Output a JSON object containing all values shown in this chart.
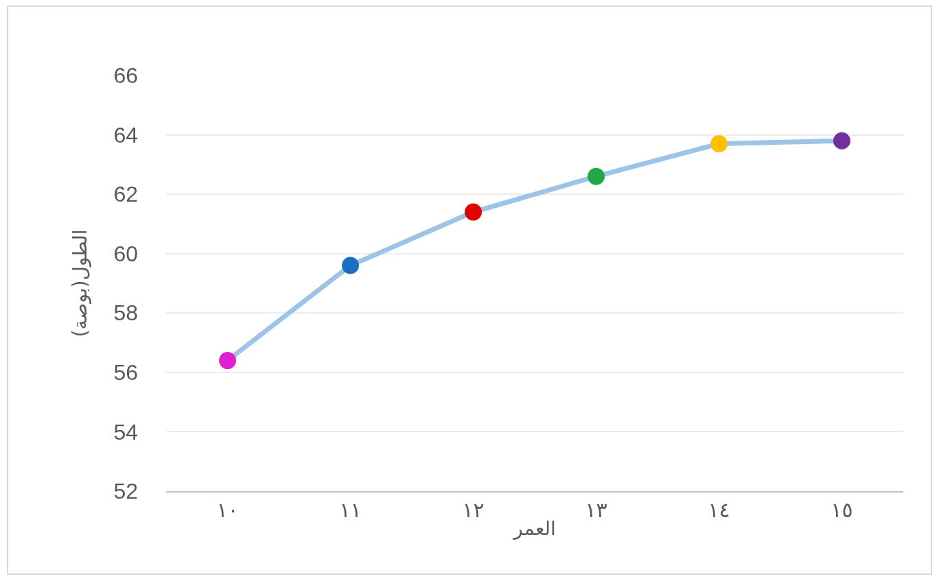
{
  "chart_data": {
    "type": "line",
    "xlabel": "العمر",
    "ylabel": "الطول(بوصة)",
    "categories": [
      "١٠",
      "١١",
      "١٢",
      "١٣",
      "١٤",
      "١٥"
    ],
    "series": [
      {
        "color": "#9dc3e6",
        "colors": [
          "#e020d0",
          "#1a6fc4",
          "#e00000",
          "#20a848",
          "#ffc000",
          "#7030a0"
        ],
        "values": [
          56.4,
          59.6,
          61.4,
          62.6,
          63.7,
          63.8
        ]
      }
    ],
    "ylim": [
      52,
      66
    ],
    "yticks": [
      52,
      54,
      56,
      58,
      60,
      62,
      64,
      66
    ],
    "grid": "y",
    "marker": "circle",
    "line_style": "solid"
  }
}
